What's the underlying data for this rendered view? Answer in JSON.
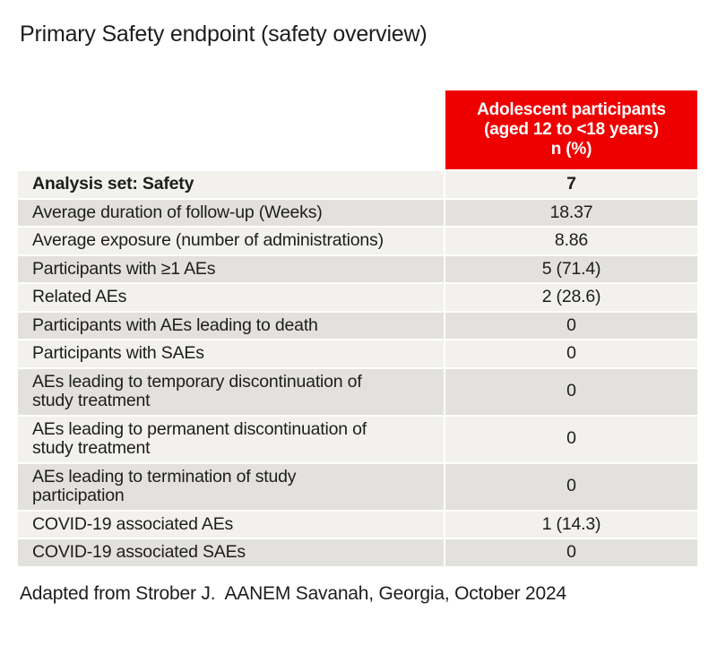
{
  "title": "Primary Safety endpoint (safety overview)",
  "table": {
    "header": {
      "column_label": "Adolescent participants\n(aged 12 to <18 years)\nn (%)"
    },
    "rows": [
      {
        "label": "Analysis set: Safety",
        "value": "7",
        "bold": true
      },
      {
        "label": "Average duration of follow-up (Weeks)",
        "value": "18.37",
        "bold": false
      },
      {
        "label": "Average exposure (number of administrations)",
        "value": "8.86",
        "bold": false
      },
      {
        "label": "Participants with ≥1 AEs",
        "value": "5 (71.4)",
        "bold": false
      },
      {
        "label": "Related AEs",
        "value": "2 (28.6)",
        "bold": false
      },
      {
        "label": "Participants with AEs leading to death",
        "value": "0",
        "bold": false
      },
      {
        "label": "Participants with SAEs",
        "value": "0",
        "bold": false
      },
      {
        "label": "AEs leading to temporary discontinuation of\nstudy treatment",
        "value": "0",
        "bold": false
      },
      {
        "label": "AEs leading to permanent discontinuation of\nstudy treatment",
        "value": "0",
        "bold": false
      },
      {
        "label": "AEs leading to termination of study\nparticipation",
        "value": "0",
        "bold": false
      },
      {
        "label": "COVID-19 associated AEs",
        "value": "1 (14.3)",
        "bold": false
      },
      {
        "label": "COVID-19 associated SAEs",
        "value": "0",
        "bold": false
      }
    ]
  },
  "footer": "Adapted from Strober J.  AANEM Savanah, Georgia, October 2024",
  "colors": {
    "header_red": "#ee0000",
    "row_light": "#f2f1ee",
    "row_dark": "#e3e1dd",
    "text": "#1d1d1b"
  }
}
